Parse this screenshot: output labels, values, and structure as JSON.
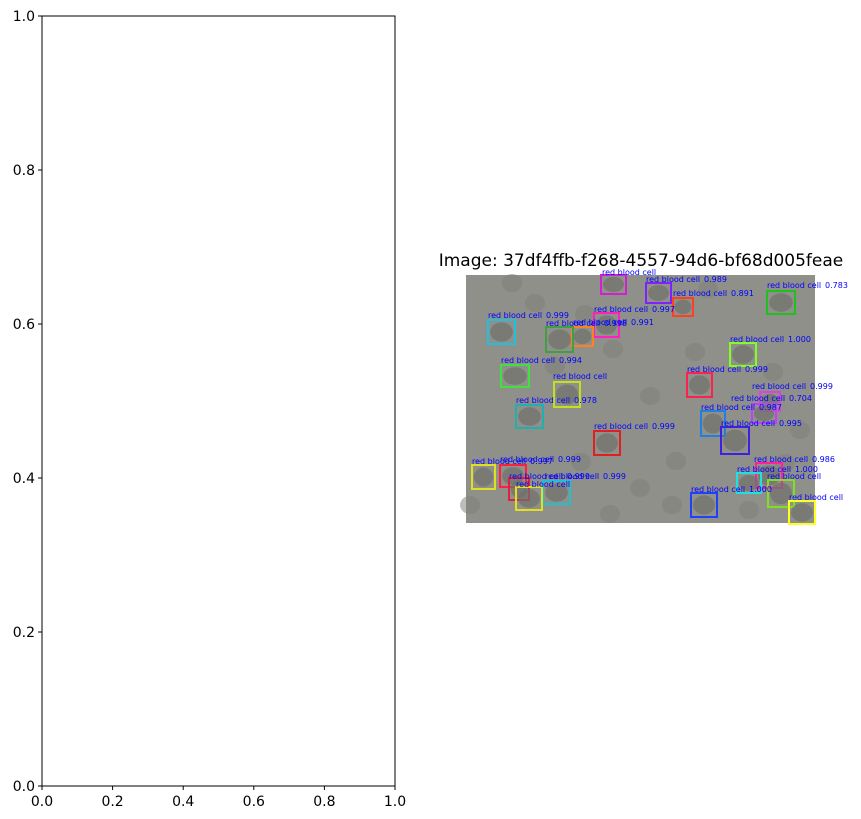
{
  "chart_data": [
    {
      "type": "scatter",
      "title": "",
      "xlabel": "",
      "ylabel": "",
      "xlim": [
        0,
        1
      ],
      "ylim": [
        0,
        1
      ],
      "x_ticks": [
        "0.0",
        "0.2",
        "0.4",
        "0.6",
        "0.8",
        "1.0"
      ],
      "y_ticks": [
        "0.0",
        "0.2",
        "0.4",
        "0.6",
        "0.8",
        "1.0"
      ],
      "series": []
    },
    {
      "type": "image-detections",
      "title": "Image: 37df4ffb-f268-4557-94d6-bf68d005feae",
      "background_color": "#8f9089",
      "detections": [
        {
          "label": "red blood cell",
          "score": "",
          "color": "#d020d0"
        },
        {
          "label": "red blood cell",
          "score": "0.989",
          "color": "#8020ff"
        },
        {
          "label": "red blood cell",
          "score": "0.891",
          "color": "#ff4020"
        },
        {
          "label": "red blood cell",
          "score": "0.783",
          "color": "#20c020"
        },
        {
          "label": "red blood cell",
          "score": "0.997",
          "color": "#ff20c0"
        },
        {
          "label": "red blood cell",
          "score": "0.999",
          "color": "#20c0e0"
        },
        {
          "label": "red blood cell",
          "score": "0.991",
          "color": "#ff8020"
        },
        {
          "label": "red blood cell",
          "score": "0.998",
          "color": "#40a040"
        },
        {
          "label": "red blood cell",
          "score": "1.000",
          "color": "#80ff20"
        },
        {
          "label": "red blood cell",
          "score": "0.994",
          "color": "#40e040"
        },
        {
          "label": "red blood cell",
          "score": "",
          "color": "#c0e020"
        },
        {
          "label": "red blood cell",
          "score": "0.999",
          "color": "#ff2050"
        },
        {
          "label": "red blood cell",
          "score": "0.999",
          "color": "#e040e0"
        },
        {
          "label": "red blood cell",
          "score": "0.704",
          "color": "#c040ff"
        },
        {
          "label": "red blood cell",
          "score": "0.978",
          "color": "#20b0b0"
        },
        {
          "label": "red blood cell",
          "score": "0.987",
          "color": "#2080e0"
        },
        {
          "label": "red blood cell",
          "score": "0.995",
          "color": "#4020e0"
        },
        {
          "label": "red blood cell",
          "score": "0.999",
          "color": "#e02020"
        },
        {
          "label": "red blood cell",
          "score": "0.986",
          "color": "#ff20a0"
        },
        {
          "label": "red blood cell",
          "score": "0.999",
          "color": "#ff2040"
        },
        {
          "label": "red blood cell",
          "score": "0.997",
          "color": "#e0e020"
        },
        {
          "label": "red blood cell",
          "score": "0.999",
          "color": "#e02040"
        },
        {
          "label": "red blood cell",
          "score": "1.000",
          "color": "#20e0e0"
        },
        {
          "label": "red blood cell",
          "score": "",
          "color": "#80e020"
        },
        {
          "label": "red blood cell",
          "score": "0.999",
          "color": "#20c0d0"
        },
        {
          "label": "red blood cell",
          "score": "",
          "color": "#ffff20"
        },
        {
          "label": "red blood cell",
          "score": "1.000",
          "color": "#2040ff"
        },
        {
          "label": "red blood cell",
          "score": "",
          "color": "#e0e020"
        }
      ]
    }
  ]
}
